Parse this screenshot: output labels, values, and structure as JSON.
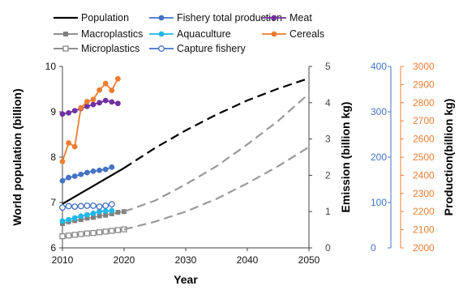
{
  "chart_data": {
    "type": "line",
    "x_axis": {
      "label": "Year",
      "range": [
        2010,
        2050
      ],
      "ticks": [
        2010,
        2020,
        2030,
        2040,
        2050
      ]
    },
    "axes": {
      "population": {
        "label": "World population (billion)",
        "range": [
          6,
          10
        ],
        "ticks": [
          6,
          7,
          8,
          9,
          10
        ],
        "color": "#000000"
      },
      "emission": {
        "label": "Emission (billion kg)",
        "range": [
          0,
          5
        ],
        "ticks": [
          0,
          1,
          2,
          3,
          4,
          5
        ],
        "color": "#000000"
      },
      "fishery": {
        "label": "",
        "range": [
          0,
          400
        ],
        "ticks": [
          0,
          100,
          200,
          300,
          400
        ],
        "color": "#4472c4"
      },
      "production": {
        "label": "Production(billion kg)",
        "range": [
          2000,
          3000
        ],
        "ticks": [
          2000,
          2100,
          2200,
          2300,
          2400,
          2500,
          2600,
          2700,
          2800,
          2900,
          3000
        ],
        "color": "#ed7d31"
      }
    },
    "legend": [
      {
        "key": "population",
        "label": "Population"
      },
      {
        "key": "fishery_total",
        "label": "Fishery total production"
      },
      {
        "key": "meat",
        "label": "Meat"
      },
      {
        "key": "macroplastics",
        "label": "Macroplastics"
      },
      {
        "key": "aquaculture",
        "label": "Aquaculture"
      },
      {
        "key": "cereals",
        "label": "Cereals"
      },
      {
        "key": "microplastics",
        "label": "Microplastics"
      },
      {
        "key": "capture_fishery",
        "label": "Capture fishery"
      }
    ],
    "series": [
      {
        "key": "population",
        "name": "Population",
        "axis": "population",
        "color": "#000000",
        "style": "line",
        "x": [
          2010,
          2020
        ],
        "y": [
          6.97,
          7.76
        ]
      },
      {
        "key": "population_projection",
        "axis": "population",
        "color": "#000000",
        "style": "dashed",
        "x": [
          2020,
          2025,
          2030,
          2035,
          2040,
          2045,
          2050
        ],
        "y": [
          7.76,
          8.2,
          8.59,
          8.94,
          9.25,
          9.51,
          9.74
        ]
      },
      {
        "key": "macroplastics",
        "name": "Macroplastics",
        "axis": "emission",
        "color": "#808080",
        "style": "marker-filled-square",
        "x": [
          2010,
          2011,
          2012,
          2013,
          2014,
          2015,
          2016,
          2017,
          2018,
          2019,
          2020
        ],
        "y": [
          0.67,
          0.72,
          0.75,
          0.78,
          0.82,
          0.84,
          0.88,
          0.9,
          0.94,
          0.98,
          1.0
        ]
      },
      {
        "key": "macroplastics_projection",
        "axis": "emission",
        "color": "#999999",
        "style": "dashed",
        "x": [
          2020,
          2025,
          2030,
          2035,
          2040,
          2045,
          2050
        ],
        "y": [
          1.0,
          1.3,
          1.75,
          2.25,
          2.85,
          3.5,
          4.25
        ]
      },
      {
        "key": "microplastics",
        "name": "Microplastics",
        "axis": "emission",
        "color": "#808080",
        "style": "marker-open-square",
        "x": [
          2010,
          2011,
          2012,
          2013,
          2014,
          2015,
          2016,
          2017,
          2018,
          2019,
          2020
        ],
        "y": [
          0.32,
          0.34,
          0.36,
          0.38,
          0.4,
          0.41,
          0.43,
          0.45,
          0.47,
          0.49,
          0.51
        ]
      },
      {
        "key": "microplastics_projection",
        "axis": "emission",
        "color": "#999999",
        "style": "dashed",
        "x": [
          2020,
          2025,
          2030,
          2035,
          2040,
          2045,
          2050
        ],
        "y": [
          0.51,
          0.72,
          1.0,
          1.35,
          1.78,
          2.25,
          2.78
        ]
      },
      {
        "key": "fishery_total",
        "name": "Fishery total production",
        "axis": "fishery",
        "color": "#4472c4",
        "style": "marker-line",
        "x": [
          2010,
          2011,
          2012,
          2013,
          2014,
          2015,
          2016,
          2017,
          2018
        ],
        "y": [
          148,
          155,
          158,
          162,
          166,
          169,
          171,
          173,
          178
        ]
      },
      {
        "key": "aquaculture",
        "name": "Aquaculture",
        "axis": "fishery",
        "color": "#1fb8e8",
        "style": "marker-line",
        "x": [
          2010,
          2011,
          2012,
          2013,
          2014,
          2015,
          2016,
          2017,
          2018
        ],
        "y": [
          59,
          62,
          66,
          70,
          73,
          76,
          80,
          81,
          82
        ]
      },
      {
        "key": "capture_fishery",
        "name": "Capture fishery",
        "axis": "fishery",
        "color": "#4472c4",
        "style": "marker-open-line",
        "x": [
          2010,
          2011,
          2012,
          2013,
          2014,
          2015,
          2016,
          2017,
          2018
        ],
        "y": [
          89,
          92,
          91,
          92,
          93,
          93,
          91,
          93,
          96
        ]
      },
      {
        "key": "meat",
        "name": "Meat",
        "axis": "production",
        "color": "#7030a0",
        "style": "marker-line",
        "x": [
          2010,
          2011,
          2012,
          2013,
          2014,
          2015,
          2016,
          2017,
          2018,
          2019
        ],
        "y": [
          2738,
          2744,
          2756,
          2768,
          2780,
          2790,
          2800,
          2812,
          2804,
          2796
        ]
      },
      {
        "key": "cereals",
        "name": "Cereals",
        "axis": "production",
        "color": "#ed7d31",
        "style": "marker-line",
        "x": [
          2010,
          2011,
          2012,
          2013,
          2014,
          2015,
          2016,
          2017,
          2018,
          2019
        ],
        "y": [
          2476,
          2578,
          2558,
          2772,
          2806,
          2818,
          2870,
          2906,
          2868,
          2932
        ]
      }
    ]
  }
}
